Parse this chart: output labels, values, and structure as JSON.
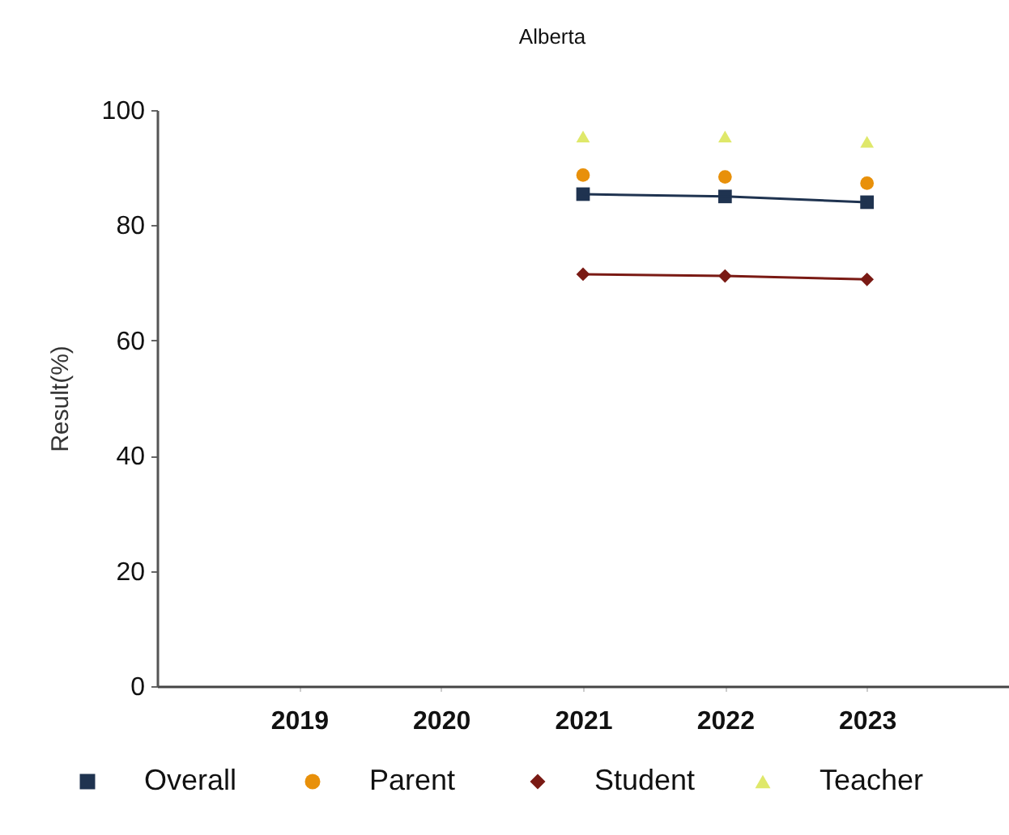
{
  "chart_data": {
    "type": "line",
    "title": "Alberta",
    "ylabel": "Result(%)",
    "categories": [
      "2019",
      "2020",
      "2021",
      "2022",
      "2023"
    ],
    "series": [
      {
        "name": "Overall",
        "type": "line",
        "marker": "square",
        "color": "#1f3350",
        "values": [
          null,
          null,
          85.4,
          85.0,
          84.0
        ]
      },
      {
        "name": "Parent",
        "type": "scatter",
        "marker": "circle",
        "color": "#e8900a",
        "values": [
          null,
          null,
          88.7,
          88.4,
          87.3
        ]
      },
      {
        "name": "Student",
        "type": "line",
        "marker": "diamond",
        "color": "#7a1a14",
        "values": [
          null,
          null,
          71.5,
          71.2,
          70.6
        ]
      },
      {
        "name": "Teacher",
        "type": "scatter",
        "marker": "triangle",
        "color": "#dfe86a",
        "values": [
          null,
          null,
          95.4,
          95.4,
          94.5
        ]
      }
    ],
    "ylim": [
      0,
      100
    ],
    "yticks": [
      0,
      20,
      40,
      60,
      80,
      100
    ],
    "legend": "bottom"
  }
}
